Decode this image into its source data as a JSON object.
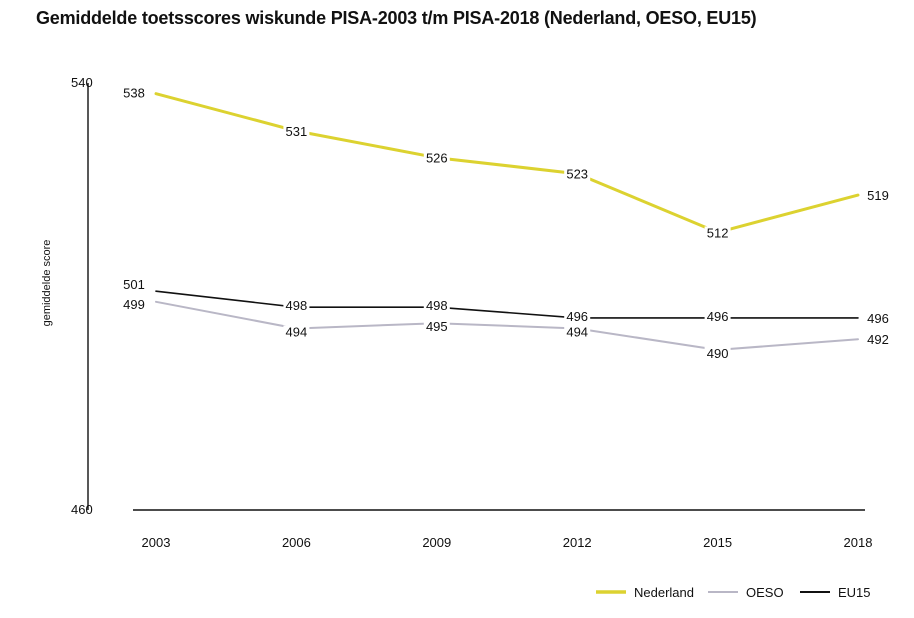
{
  "chart_data": {
    "type": "line",
    "title": "Gemiddelde toetsscores wiskunde PISA-2003 t/m PISA-2018 (Nederland, OESO, EU15)",
    "xlabel": "",
    "ylabel": "gemiddelde score",
    "x": [
      "2003",
      "2006",
      "2009",
      "2012",
      "2015",
      "2018"
    ],
    "ylim": [
      460,
      540
    ],
    "y_tick_labels": [
      "540",
      "460"
    ],
    "grid": false,
    "legend_position": "bottom-right",
    "series": [
      {
        "name": "Nederland",
        "color": "#dcd230",
        "values": [
          538,
          531,
          526,
          523,
          512,
          519
        ]
      },
      {
        "name": "OESO",
        "color": "#b9b7c6",
        "values": [
          499,
          494,
          495,
          494,
          490,
          492
        ]
      },
      {
        "name": "EU15",
        "color": "#111111",
        "values": [
          501,
          498,
          498,
          496,
          496,
          496
        ]
      }
    ]
  }
}
